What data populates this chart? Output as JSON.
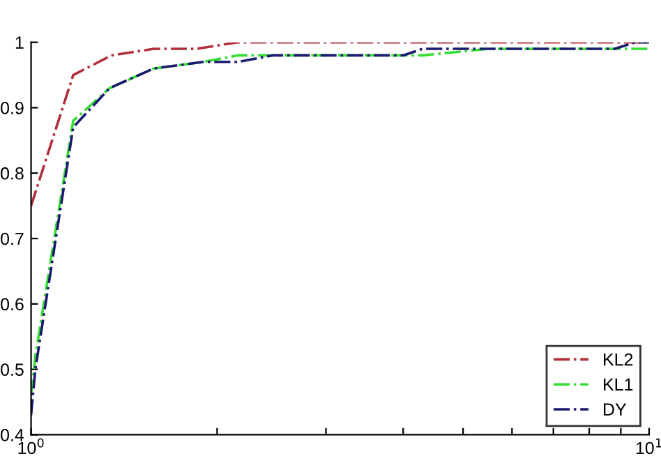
{
  "chart_data": {
    "type": "line",
    "log": "x",
    "xlim": [
      1,
      10
    ],
    "ylim": [
      0.4,
      1.0
    ],
    "xticks": [
      {
        "value": 1,
        "label": "10$^{0}$"
      },
      {
        "value": 2,
        "label": null
      },
      {
        "value": 3,
        "label": null
      },
      {
        "value": 4,
        "label": null
      },
      {
        "value": 5,
        "label": null
      },
      {
        "value": 6,
        "label": null
      },
      {
        "value": 7,
        "label": null
      },
      {
        "value": 8,
        "label": null
      },
      {
        "value": 9,
        "label": null
      },
      {
        "value": 10,
        "label": "10$^{1}$"
      }
    ],
    "yticks": [
      0.4,
      0.5,
      0.6,
      0.7,
      0.8,
      0.9,
      1
    ],
    "grid": false,
    "legend": "bottom right",
    "line_style": "dashdot",
    "marker": "none",
    "series": [
      {
        "name": "KL2",
        "color": "#b0303a",
        "x": [
          1,
          1.17,
          1.35,
          1.58,
          1.85,
          2.16,
          10
        ],
        "values": [
          0.75,
          0.95,
          0.98,
          0.99,
          0.99,
          1.0,
          1.0
        ]
      },
      {
        "name": "KL1",
        "color": "#33dd33",
        "x": [
          1,
          1.016,
          1.17,
          1.34,
          1.58,
          1.9,
          2.16,
          2.46,
          4.3,
          5.5,
          10
        ],
        "values": [
          0.46,
          0.52,
          0.88,
          0.93,
          0.96,
          0.97,
          0.98,
          0.98,
          0.98,
          0.99,
          0.99
        ]
      },
      {
        "name": "DY",
        "color": "#1a1a6e",
        "x": [
          1,
          1.016,
          1.17,
          1.34,
          1.58,
          1.9,
          2.16,
          2.46,
          4.0,
          4.3,
          8.8,
          9.5,
          10
        ],
        "values": [
          0.43,
          0.5,
          0.87,
          0.93,
          0.96,
          0.97,
          0.97,
          0.98,
          0.98,
          0.99,
          0.99,
          1.0,
          1.0
        ]
      }
    ]
  }
}
